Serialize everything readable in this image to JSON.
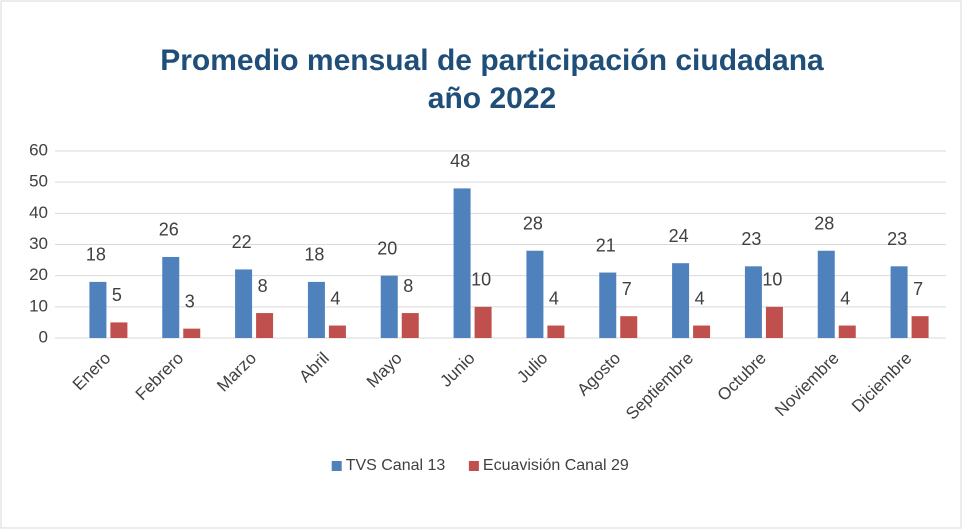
{
  "chart_data": {
    "type": "bar",
    "title": [
      "Promedio mensual de participación ciudadana",
      "año 2022"
    ],
    "categories": [
      "Enero",
      "Febrero",
      "Marzo",
      "Abril",
      "Mayo",
      "Junio",
      "Julio",
      "Agosto",
      "Septiembre",
      "Octubre",
      "Noviembre",
      "Diciembre"
    ],
    "series": [
      {
        "name": "TVS Canal 13",
        "color": "#4f81bd",
        "values": [
          18,
          26,
          22,
          18,
          20,
          48,
          28,
          21,
          24,
          23,
          28,
          23
        ]
      },
      {
        "name": "Ecuavisión Canal 29",
        "color": "#c0504d",
        "values": [
          5,
          3,
          8,
          4,
          8,
          10,
          4,
          7,
          4,
          10,
          4,
          7
        ]
      }
    ],
    "ylim": [
      0,
      60
    ],
    "yticks": [
      0,
      10,
      20,
      30,
      40,
      50,
      60
    ],
    "grid": true,
    "legend": "bottom"
  }
}
